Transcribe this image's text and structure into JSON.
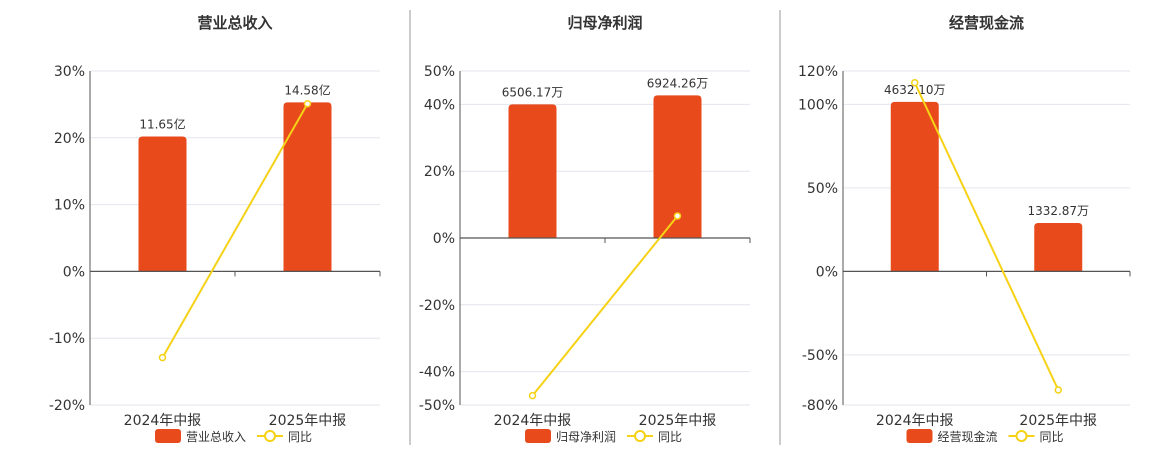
{
  "colors": {
    "bar": "#e84a1b",
    "line": "#f5d216",
    "axis": "#555555",
    "grid": "#e3e6ee",
    "divider": "#999999",
    "text": "#333333"
  },
  "legend": {
    "yoy_label": "同比"
  },
  "chart_data": [
    {
      "type": "bar",
      "title": "营业总收入",
      "categories": [
        "2024年中报",
        "2025年中报"
      ],
      "ylim": [
        -20,
        30
      ],
      "yticks": [
        -20,
        -10,
        0,
        10,
        20,
        30
      ],
      "ytick_labels": [
        "-20%",
        "-10%",
        "0%",
        "10%",
        "20%",
        "30%"
      ],
      "series": [
        {
          "name": "营业总收入",
          "kind": "bar",
          "values": [
            20.2,
            25.3
          ],
          "labels": [
            "11.65亿",
            "14.58亿"
          ]
        },
        {
          "name": "同比",
          "kind": "line",
          "values": [
            -12.9,
            25.1
          ]
        }
      ]
    },
    {
      "type": "bar",
      "title": "归母净利润",
      "categories": [
        "2024年中报",
        "2025年中报"
      ],
      "ylim": [
        -50,
        50
      ],
      "yticks": [
        -50,
        -40,
        -20,
        0,
        20,
        40,
        50
      ],
      "ytick_labels": [
        "-50%",
        "-40%",
        "-20%",
        "0%",
        "20%",
        "40%",
        "50%"
      ],
      "series": [
        {
          "name": "归母净利润",
          "kind": "bar",
          "values": [
            40.0,
            42.7
          ],
          "labels": [
            "6506.17万",
            "6924.26万"
          ]
        },
        {
          "name": "同比",
          "kind": "line",
          "values": [
            -47.2,
            6.6
          ]
        }
      ]
    },
    {
      "type": "bar",
      "title": "经营现金流",
      "categories": [
        "2024年中报",
        "2025年中报"
      ],
      "ylim": [
        -80,
        120
      ],
      "yticks": [
        -80,
        -50,
        0,
        50,
        100,
        120
      ],
      "ytick_labels": [
        "-80%",
        "-50%",
        "0%",
        "50%",
        "100%",
        "120%"
      ],
      "series": [
        {
          "name": "经营现金流",
          "kind": "bar",
          "values": [
            101.5,
            29.0
          ],
          "labels": [
            "4632.10万",
            "1332.87万"
          ]
        },
        {
          "name": "同比",
          "kind": "line",
          "values": [
            113.0,
            -71.0
          ]
        }
      ]
    }
  ]
}
